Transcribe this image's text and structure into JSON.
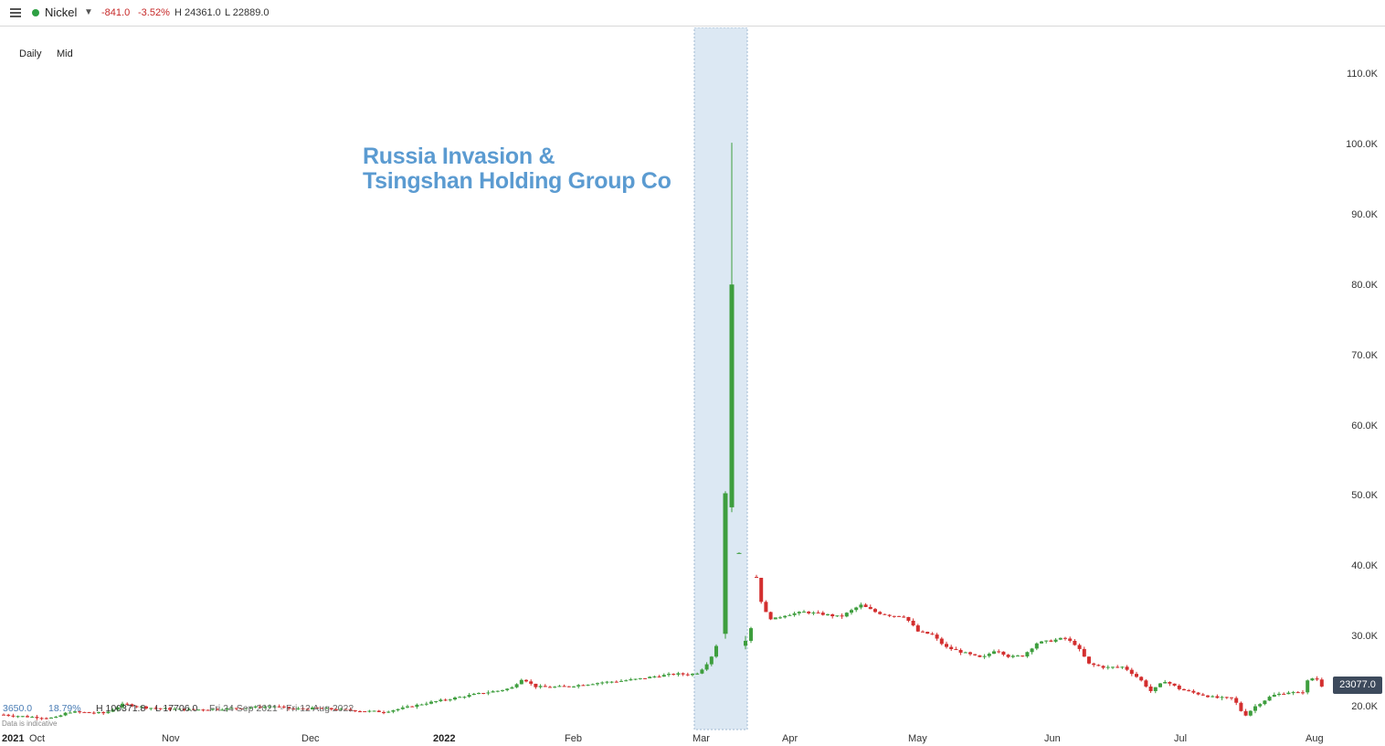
{
  "header": {
    "instrument": "Nickel",
    "change": "-841.0",
    "change_pct": "-3.52%",
    "high": "H 24361.0",
    "low": "L 22889.0"
  },
  "toolbar": {
    "timeframe": "Daily",
    "price_type": "Mid"
  },
  "annotation": {
    "line1": "Russia Invasion &",
    "line2": "Tsingshan Holding Group Co"
  },
  "stats_bar": {
    "value": "3650.0",
    "pct": "18.79%",
    "high": "H 100371.8",
    "low": "L 17706.0",
    "range": "Fri 24 Sep 2021 - Fri 12 Aug 2022",
    "source": "Data is indicative"
  },
  "last_price": "23077.0",
  "colors": {
    "up": "#3e9e3e",
    "down": "#d32f2f",
    "highlight": "#dce8f3",
    "annotation": "#5b9bd1",
    "price_tag": "#3d4a5c"
  },
  "chart_data": {
    "type": "candlestick",
    "y_ticks": [
      "110.0K",
      "100.0K",
      "90.0K",
      "80.0K",
      "70.0K",
      "60.0K",
      "50.0K",
      "40.0K",
      "30.0K",
      "20.0K"
    ],
    "y_tick_values": [
      110000,
      100000,
      90000,
      80000,
      70000,
      60000,
      50000,
      40000,
      30000,
      20000
    ],
    "x_ticks": [
      {
        "label": "2021",
        "bold": true
      },
      {
        "label": "Oct"
      },
      {
        "label": "Nov"
      },
      {
        "label": "Dec"
      },
      {
        "label": "2022",
        "bold": true
      },
      {
        "label": "Feb"
      },
      {
        "label": "Mar"
      },
      {
        "label": "Apr"
      },
      {
        "label": "May"
      },
      {
        "label": "Jun"
      },
      {
        "label": "Jul"
      },
      {
        "label": "Aug"
      }
    ],
    "highlight_range": [
      "Mar 1 2022",
      "Mar 14 2022"
    ],
    "ylim": [
      17000,
      117000
    ],
    "series_approx_close": [
      {
        "period": "late Sep 2021",
        "value": 19000
      },
      {
        "period": "Oct 2021",
        "value": 19500
      },
      {
        "period": "Nov 2021",
        "value": 19800
      },
      {
        "period": "Dec 2021",
        "value": 19700
      },
      {
        "period": "Jan 2022",
        "value": 22300
      },
      {
        "period": "Feb 2022",
        "value": 24000
      },
      {
        "period": "Mar 7 2022",
        "value": 50500
      },
      {
        "period": "Mar 8 2022",
        "value": 80200
      },
      {
        "period": "Mar 8 2022 high",
        "value": 100371.8
      },
      {
        "period": "Mar 16 2022",
        "value": 32600
      },
      {
        "period": "Apr 2022",
        "value": 33000
      },
      {
        "period": "May 2022",
        "value": 26800
      },
      {
        "period": "Jun 2022",
        "value": 25500
      },
      {
        "period": "Jul 2022",
        "value": 19800
      },
      {
        "period": "Aug 2022",
        "value": 23077
      }
    ]
  }
}
